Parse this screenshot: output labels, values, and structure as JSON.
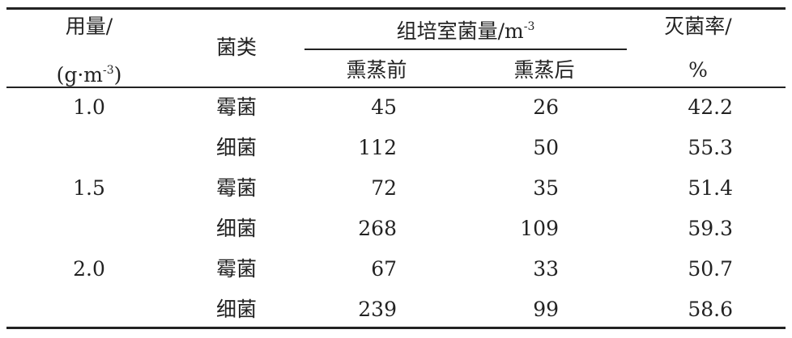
{
  "headers": {
    "dose_line1": "用量/",
    "dose_line2_pre": "(g·m",
    "dose_line2_sup": "-3",
    "dose_line2_post": ")",
    "type": "菌类",
    "count_group": "组培室菌量/m",
    "count_group_sup": "-3",
    "before": "熏蒸前",
    "after": "熏蒸后",
    "rate_line1": "灭菌率/",
    "rate_line2": "%"
  },
  "rows": [
    {
      "dose": "1.0",
      "type": "霉菌",
      "before": "45",
      "after": "26",
      "rate": "42.2"
    },
    {
      "dose": "",
      "type": "细菌",
      "before": "112",
      "after": "50",
      "rate": "55.3"
    },
    {
      "dose": "1.5",
      "type": "霉菌",
      "before": "72",
      "after": "35",
      "rate": "51.4"
    },
    {
      "dose": "",
      "type": "细菌",
      "before": "268",
      "after": "109",
      "rate": "59.3"
    },
    {
      "dose": "2.0",
      "type": "霉菌",
      "before": "67",
      "after": "33",
      "rate": "50.7"
    },
    {
      "dose": "",
      "type": "细菌",
      "before": "239",
      "after": "99",
      "rate": "58.6"
    }
  ]
}
